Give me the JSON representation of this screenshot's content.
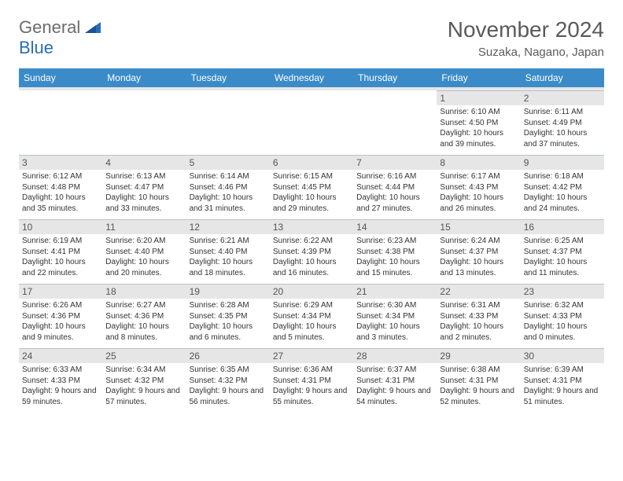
{
  "logo": {
    "part1": "General",
    "part2": "Blue"
  },
  "title": "November 2024",
  "location": "Suzaka, Nagano, Japan",
  "colors": {
    "header_bg": "#3b8bc9",
    "header_text": "#ffffff",
    "daynum_bg": "#e6e6e6",
    "border": "#b8c4cc",
    "text": "#333333",
    "title_color": "#5a5a5a",
    "logo_gray": "#6b6b6b",
    "logo_blue": "#2a6db5"
  },
  "weekdays": [
    "Sunday",
    "Monday",
    "Tuesday",
    "Wednesday",
    "Thursday",
    "Friday",
    "Saturday"
  ],
  "weeks": [
    [
      null,
      null,
      null,
      null,
      null,
      {
        "n": "1",
        "sunrise": "Sunrise: 6:10 AM",
        "sunset": "Sunset: 4:50 PM",
        "daylight": "Daylight: 10 hours and 39 minutes."
      },
      {
        "n": "2",
        "sunrise": "Sunrise: 6:11 AM",
        "sunset": "Sunset: 4:49 PM",
        "daylight": "Daylight: 10 hours and 37 minutes."
      }
    ],
    [
      {
        "n": "3",
        "sunrise": "Sunrise: 6:12 AM",
        "sunset": "Sunset: 4:48 PM",
        "daylight": "Daylight: 10 hours and 35 minutes."
      },
      {
        "n": "4",
        "sunrise": "Sunrise: 6:13 AM",
        "sunset": "Sunset: 4:47 PM",
        "daylight": "Daylight: 10 hours and 33 minutes."
      },
      {
        "n": "5",
        "sunrise": "Sunrise: 6:14 AM",
        "sunset": "Sunset: 4:46 PM",
        "daylight": "Daylight: 10 hours and 31 minutes."
      },
      {
        "n": "6",
        "sunrise": "Sunrise: 6:15 AM",
        "sunset": "Sunset: 4:45 PM",
        "daylight": "Daylight: 10 hours and 29 minutes."
      },
      {
        "n": "7",
        "sunrise": "Sunrise: 6:16 AM",
        "sunset": "Sunset: 4:44 PM",
        "daylight": "Daylight: 10 hours and 27 minutes."
      },
      {
        "n": "8",
        "sunrise": "Sunrise: 6:17 AM",
        "sunset": "Sunset: 4:43 PM",
        "daylight": "Daylight: 10 hours and 26 minutes."
      },
      {
        "n": "9",
        "sunrise": "Sunrise: 6:18 AM",
        "sunset": "Sunset: 4:42 PM",
        "daylight": "Daylight: 10 hours and 24 minutes."
      }
    ],
    [
      {
        "n": "10",
        "sunrise": "Sunrise: 6:19 AM",
        "sunset": "Sunset: 4:41 PM",
        "daylight": "Daylight: 10 hours and 22 minutes."
      },
      {
        "n": "11",
        "sunrise": "Sunrise: 6:20 AM",
        "sunset": "Sunset: 4:40 PM",
        "daylight": "Daylight: 10 hours and 20 minutes."
      },
      {
        "n": "12",
        "sunrise": "Sunrise: 6:21 AM",
        "sunset": "Sunset: 4:40 PM",
        "daylight": "Daylight: 10 hours and 18 minutes."
      },
      {
        "n": "13",
        "sunrise": "Sunrise: 6:22 AM",
        "sunset": "Sunset: 4:39 PM",
        "daylight": "Daylight: 10 hours and 16 minutes."
      },
      {
        "n": "14",
        "sunrise": "Sunrise: 6:23 AM",
        "sunset": "Sunset: 4:38 PM",
        "daylight": "Daylight: 10 hours and 15 minutes."
      },
      {
        "n": "15",
        "sunrise": "Sunrise: 6:24 AM",
        "sunset": "Sunset: 4:37 PM",
        "daylight": "Daylight: 10 hours and 13 minutes."
      },
      {
        "n": "16",
        "sunrise": "Sunrise: 6:25 AM",
        "sunset": "Sunset: 4:37 PM",
        "daylight": "Daylight: 10 hours and 11 minutes."
      }
    ],
    [
      {
        "n": "17",
        "sunrise": "Sunrise: 6:26 AM",
        "sunset": "Sunset: 4:36 PM",
        "daylight": "Daylight: 10 hours and 9 minutes."
      },
      {
        "n": "18",
        "sunrise": "Sunrise: 6:27 AM",
        "sunset": "Sunset: 4:36 PM",
        "daylight": "Daylight: 10 hours and 8 minutes."
      },
      {
        "n": "19",
        "sunrise": "Sunrise: 6:28 AM",
        "sunset": "Sunset: 4:35 PM",
        "daylight": "Daylight: 10 hours and 6 minutes."
      },
      {
        "n": "20",
        "sunrise": "Sunrise: 6:29 AM",
        "sunset": "Sunset: 4:34 PM",
        "daylight": "Daylight: 10 hours and 5 minutes."
      },
      {
        "n": "21",
        "sunrise": "Sunrise: 6:30 AM",
        "sunset": "Sunset: 4:34 PM",
        "daylight": "Daylight: 10 hours and 3 minutes."
      },
      {
        "n": "22",
        "sunrise": "Sunrise: 6:31 AM",
        "sunset": "Sunset: 4:33 PM",
        "daylight": "Daylight: 10 hours and 2 minutes."
      },
      {
        "n": "23",
        "sunrise": "Sunrise: 6:32 AM",
        "sunset": "Sunset: 4:33 PM",
        "daylight": "Daylight: 10 hours and 0 minutes."
      }
    ],
    [
      {
        "n": "24",
        "sunrise": "Sunrise: 6:33 AM",
        "sunset": "Sunset: 4:33 PM",
        "daylight": "Daylight: 9 hours and 59 minutes."
      },
      {
        "n": "25",
        "sunrise": "Sunrise: 6:34 AM",
        "sunset": "Sunset: 4:32 PM",
        "daylight": "Daylight: 9 hours and 57 minutes."
      },
      {
        "n": "26",
        "sunrise": "Sunrise: 6:35 AM",
        "sunset": "Sunset: 4:32 PM",
        "daylight": "Daylight: 9 hours and 56 minutes."
      },
      {
        "n": "27",
        "sunrise": "Sunrise: 6:36 AM",
        "sunset": "Sunset: 4:31 PM",
        "daylight": "Daylight: 9 hours and 55 minutes."
      },
      {
        "n": "28",
        "sunrise": "Sunrise: 6:37 AM",
        "sunset": "Sunset: 4:31 PM",
        "daylight": "Daylight: 9 hours and 54 minutes."
      },
      {
        "n": "29",
        "sunrise": "Sunrise: 6:38 AM",
        "sunset": "Sunset: 4:31 PM",
        "daylight": "Daylight: 9 hours and 52 minutes."
      },
      {
        "n": "30",
        "sunrise": "Sunrise: 6:39 AM",
        "sunset": "Sunset: 4:31 PM",
        "daylight": "Daylight: 9 hours and 51 minutes."
      }
    ]
  ]
}
